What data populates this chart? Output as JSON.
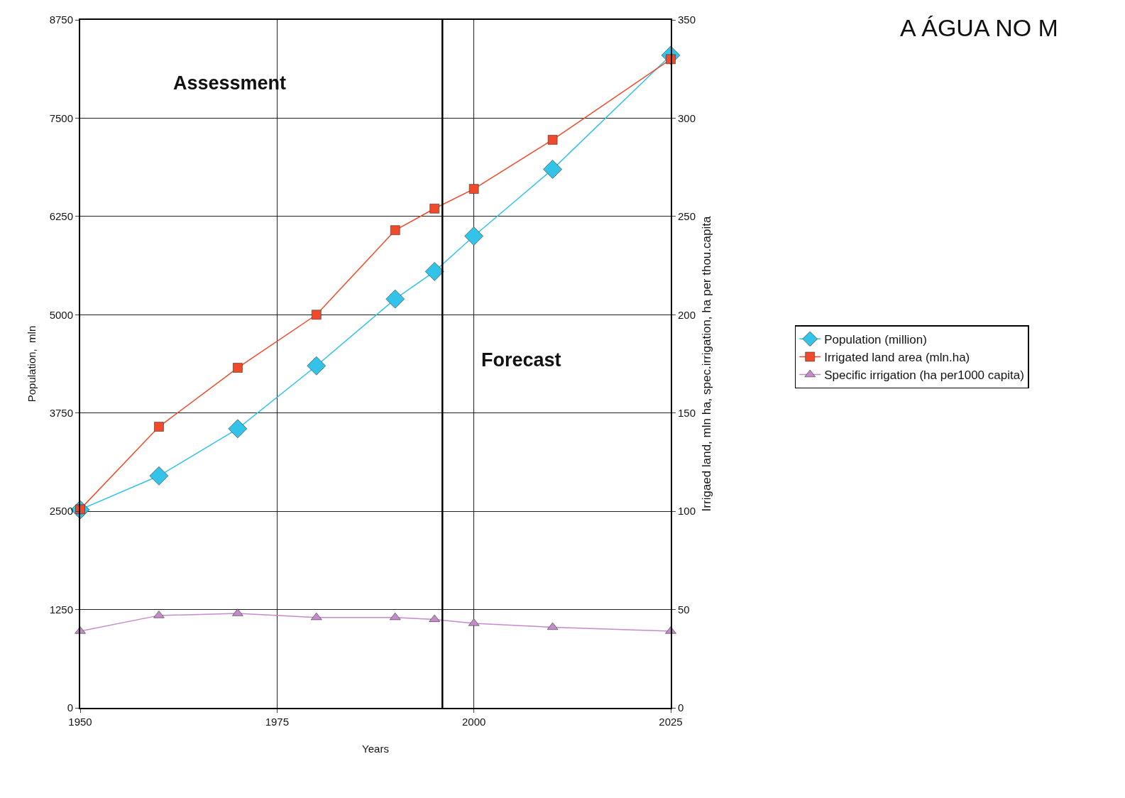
{
  "chart_data": {
    "type": "line",
    "title": "A ÁGUA NO M",
    "xlabel": "Years",
    "ylabel": "Population,  mln",
    "y2label": "Irrigaed land, mln ha, spec.irrigation, ha per thou.capita",
    "x": [
      1950,
      1960,
      1970,
      1980,
      1990,
      1995,
      2000,
      2010,
      2025
    ],
    "series": [
      {
        "name": "Population (million)",
        "color": "#33c3e8",
        "marker": "diamond",
        "values": [
          2520,
          2950,
          3550,
          4350,
          5200,
          5550,
          6000,
          6850,
          8300
        ]
      },
      {
        "name": "Irrigated land area (mln.ha)",
        "color": "#f04a2a",
        "marker": "square",
        "axis": "y2",
        "values": [
          101,
          143,
          173,
          200,
          243,
          254,
          264,
          289,
          330
        ]
      },
      {
        "name": "Specific irrigation (ha per1000 capita)",
        "color": "#c58ac8",
        "marker": "triangle",
        "axis": "y2",
        "values": [
          39,
          47,
          48,
          46,
          46,
          45,
          43,
          41,
          39
        ]
      }
    ],
    "xlim": [
      1950,
      2025
    ],
    "xticks": [
      1950,
      1975,
      2000,
      2025
    ],
    "ylim": [
      0,
      8750
    ],
    "yticks": [
      0,
      1250,
      2500,
      3750,
      5000,
      6250,
      7500,
      8750
    ],
    "y2lim": [
      0,
      350
    ],
    "y2ticks": [
      0,
      50,
      100,
      150,
      200,
      250,
      300,
      350
    ],
    "ref_lines": [
      {
        "axis": "x",
        "value": 1996,
        "color": "#000000"
      }
    ],
    "annotations": [
      "Assessment",
      "Forecast"
    ],
    "grid": true,
    "legend": "right",
    "line_style": "solid"
  }
}
